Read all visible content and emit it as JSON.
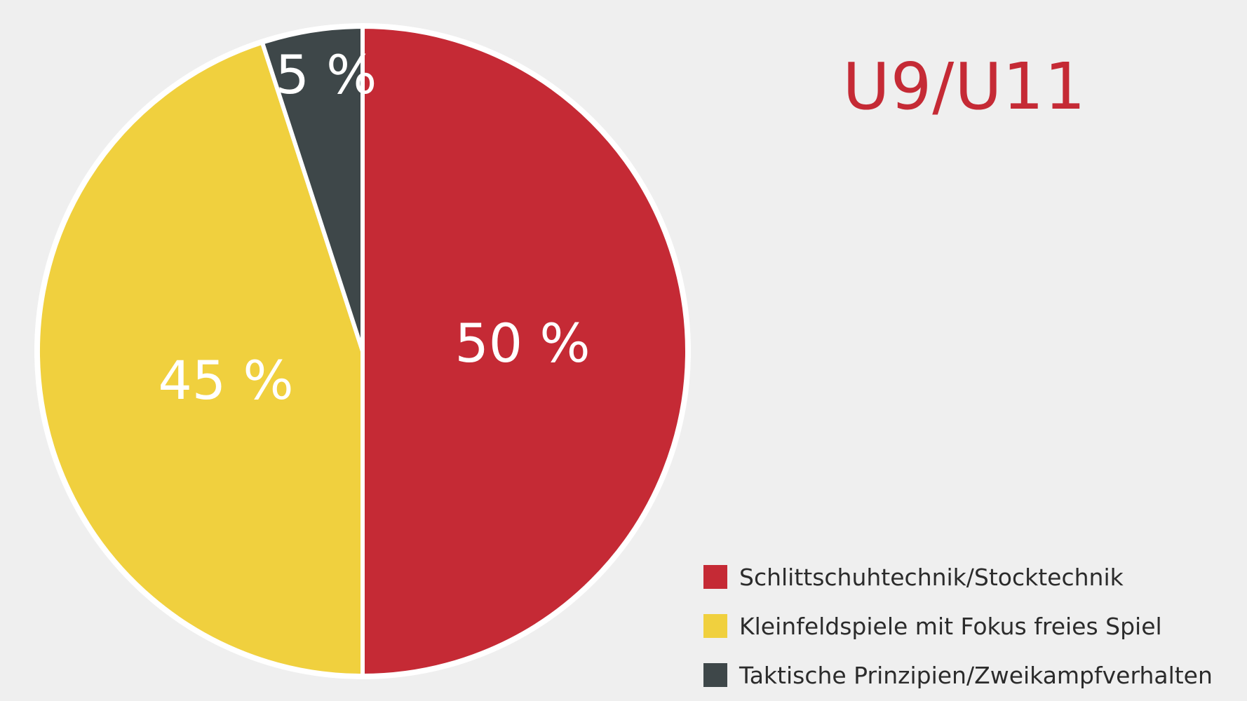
{
  "chart_data": {
    "type": "pie",
    "title": "U9/U11",
    "legend_position": "bottom-right",
    "slices": [
      {
        "label": "Schlittschuhtechnik/Stocktechnik",
        "value": 50,
        "value_label": "50 %",
        "color": "#c52a35"
      },
      {
        "label": "Kleinfeldspiele mit Fokus freies Spiel",
        "value": 45,
        "value_label": "45 %",
        "color": "#f0d03e"
      },
      {
        "label": "Taktische Prinzipien/Zweikampfverhalten",
        "value": 5,
        "value_label": "5 %",
        "color": "#3e4749"
      }
    ]
  }
}
